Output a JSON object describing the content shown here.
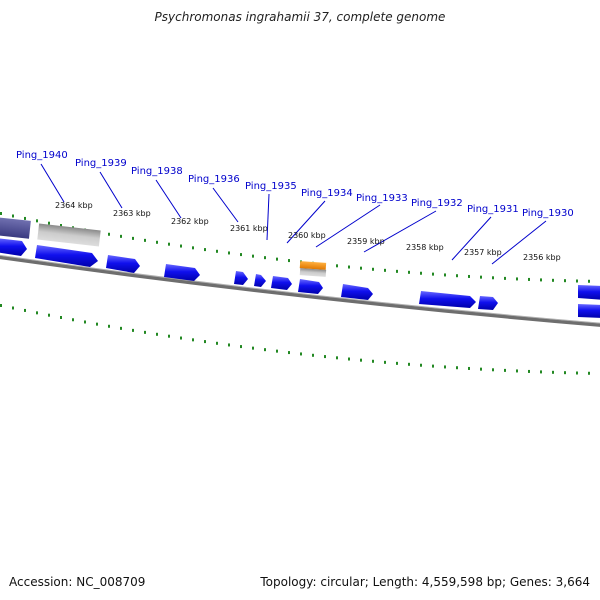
{
  "title": "Psychromonas ingrahamii 37, complete genome",
  "accession": "Accession: NC_008709",
  "summary": "Topology: circular; Length: 4,559,598 bp; Genes: 3,664",
  "kbp_labels": [
    "2364 kbp",
    "2363 kbp",
    "2362 kbp",
    "2361 kbp",
    "2360 kbp",
    "2359 kbp",
    "2358 kbp",
    "2357 kbp",
    "2356 kbp"
  ],
  "gene_labels": [
    "Ping_1940",
    "Ping_1939",
    "Ping_1938",
    "Ping_1936",
    "Ping_1935",
    "Ping_1934",
    "Ping_1933",
    "Ping_1932",
    "Ping_1931",
    "Ping_1930"
  ],
  "colors": {
    "gene": "#1010ee",
    "gene_dark": "#5050a0",
    "rna": "#ff9900",
    "pseudo": "#bbbbbb",
    "backbone": "#808080",
    "tick": "#228822",
    "label": "#0000cc"
  }
}
